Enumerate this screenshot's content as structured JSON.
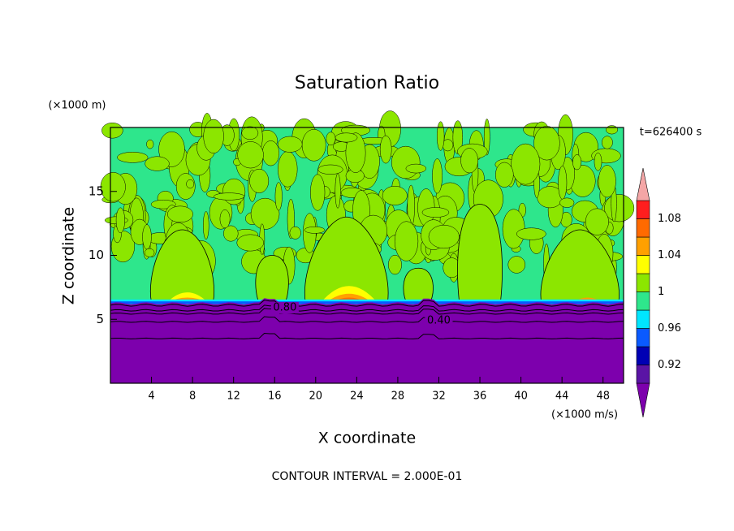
{
  "chart_data": {
    "type": "contour",
    "title": "Saturation Ratio",
    "x_label": "X coordinate",
    "y_label": "Z coordinate",
    "x_unit": "(×1000 m/s)",
    "y_unit": "(×1000 m)",
    "time_label": "t=626400 s",
    "footer": "CONTOUR INTERVAL = 2.000E-01",
    "xlim": [
      0,
      50
    ],
    "ylim": [
      0,
      20
    ],
    "xticks": [
      4,
      8,
      12,
      16,
      20,
      24,
      28,
      32,
      36,
      40,
      44,
      48
    ],
    "yticks": [
      5,
      10,
      15
    ],
    "colorbar": {
      "levels": [
        0.9,
        0.92,
        0.94,
        0.96,
        0.98,
        1,
        1.02,
        1.04,
        1.06,
        1.08,
        1.1
      ],
      "colors": [
        "#7d00ad",
        "#5a14a5",
        "#0000b4",
        "#0a5aff",
        "#00e6ff",
        "#2ee68c",
        "#8ce600",
        "#ffff00",
        "#ffa000",
        "#ff6a00",
        "#ff1e1e",
        "#f4a6a6"
      ],
      "ticks": [
        0.92,
        0.96,
        1,
        1.04,
        1.08
      ]
    },
    "contour_labels": [
      {
        "value": 0.8,
        "label": "0.80"
      },
      {
        "value": 0.4,
        "label": "0.40"
      }
    ]
  }
}
